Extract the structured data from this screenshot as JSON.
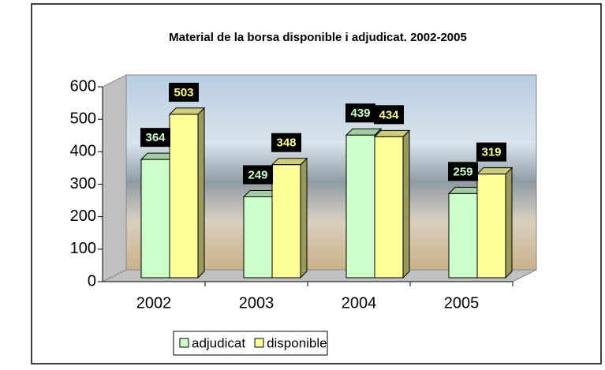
{
  "chart_data": {
    "type": "bar3d",
    "title": "Material de la borsa disponible i adjudicat. 2002-2005",
    "categories": [
      "2002",
      "2003",
      "2004",
      "2005"
    ],
    "series": [
      {
        "name": "adjudicat",
        "color": "#ccffcc",
        "values": [
          364,
          249,
          439,
          259
        ]
      },
      {
        "name": "disponible",
        "color": "#ffff99",
        "values": [
          503,
          348,
          434,
          319
        ]
      }
    ],
    "ylim": [
      0,
      600
    ],
    "yticks": [
      0,
      100,
      200,
      300,
      400,
      500,
      600
    ],
    "legend": "bottom"
  }
}
